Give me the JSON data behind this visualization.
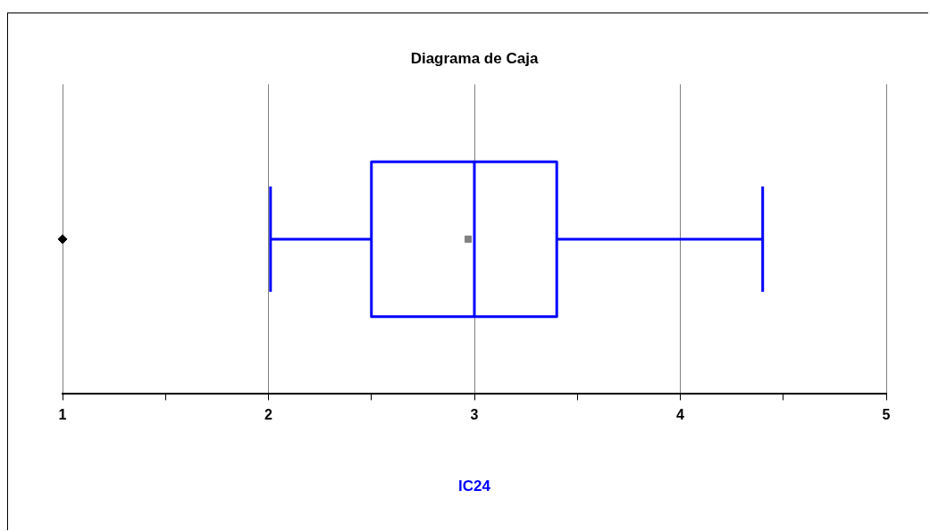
{
  "chart_data": {
    "type": "box",
    "title": "Diagrama de Caja",
    "xlabel": "IC24",
    "orientation": "horizontal",
    "categories": [
      null
    ],
    "xlim": [
      1,
      5
    ],
    "xticks": [
      1,
      {
        "value": 1.5,
        "label": null
      },
      2,
      {
        "value": 2.5,
        "label": null
      },
      3,
      {
        "value": 3.5,
        "label": null
      },
      4,
      {
        "value": 4.5,
        "label": null
      },
      5
    ],
    "grid": "x",
    "series": [
      {
        "color": "#0000ff",
        "boxes": [
          {
            "low": 2.01,
            "q1": 2.5,
            "median": 3.0,
            "q3": 3.4,
            "high": 4.4,
            "mean": 2.97,
            "outliers": [
              1
            ]
          }
        ]
      }
    ]
  }
}
